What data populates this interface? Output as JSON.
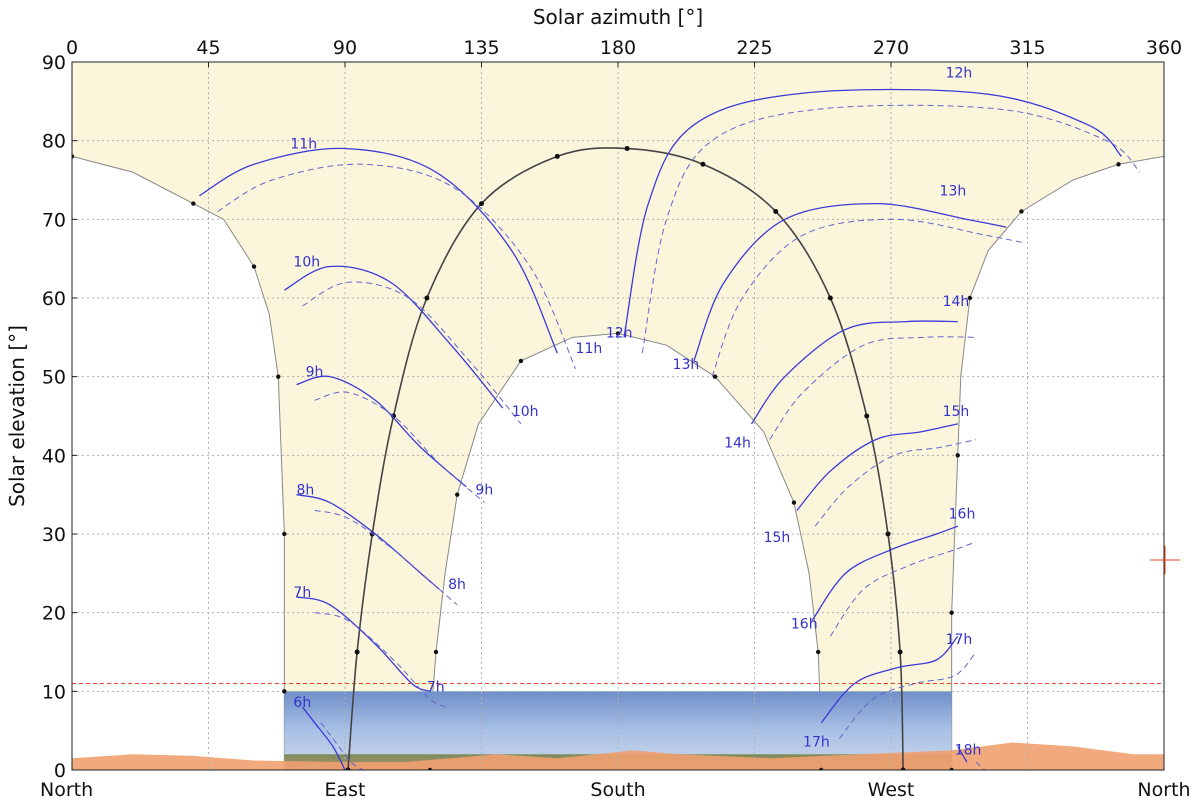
{
  "chart_data": {
    "type": "line",
    "xlabel_top": "Solar azimuth [°]",
    "ylabel": "Solar elevation [°]",
    "xlim": [
      0,
      360
    ],
    "ylim": [
      0,
      90
    ],
    "x_ticks": [
      0,
      45,
      90,
      135,
      180,
      225,
      270,
      315,
      360
    ],
    "y_ticks": [
      0,
      10,
      20,
      30,
      40,
      50,
      60,
      70,
      80,
      90
    ],
    "bottom_labels": [
      {
        "x": 0,
        "text": "North"
      },
      {
        "x": 90,
        "text": "East"
      },
      {
        "x": 180,
        "text": "South"
      },
      {
        "x": 270,
        "text": "West"
      },
      {
        "x": 360,
        "text": "North"
      }
    ],
    "colors": {
      "sky_region": "#fbf5dc",
      "analemma": "#3a3ad8",
      "boundary": "#888888",
      "horizon": "#f0a070",
      "limit_line": "#ee4422"
    },
    "horizon_limit_elevation": 11,
    "envelope": {
      "outer_left": [
        [
          0,
          78
        ],
        [
          20,
          76
        ],
        [
          40,
          72
        ],
        [
          50,
          70
        ],
        [
          60,
          64
        ],
        [
          65,
          58
        ],
        [
          68,
          50
        ],
        [
          69,
          40
        ],
        [
          70,
          30
        ],
        [
          70,
          20
        ],
        [
          70,
          10
        ],
        [
          70,
          0
        ]
      ],
      "outer_right": [
        [
          290,
          0
        ],
        [
          290,
          10
        ],
        [
          290,
          20
        ],
        [
          291,
          30
        ],
        [
          292,
          40
        ],
        [
          293,
          50
        ],
        [
          296,
          60
        ],
        [
          302,
          66
        ],
        [
          313,
          71
        ],
        [
          330,
          75
        ],
        [
          345,
          77
        ],
        [
          360,
          78
        ]
      ],
      "inner": [
        [
          118,
          0
        ],
        [
          118,
          5
        ],
        [
          120,
          15
        ],
        [
          123,
          25
        ],
        [
          127,
          35
        ],
        [
          134,
          44
        ],
        [
          148,
          52
        ],
        [
          165,
          55
        ],
        [
          180,
          55.5
        ],
        [
          196,
          54
        ],
        [
          212,
          50
        ],
        [
          228,
          43
        ],
        [
          238,
          34
        ],
        [
          243,
          25
        ],
        [
          246,
          15
        ],
        [
          247,
          5
        ],
        [
          247,
          0
        ]
      ]
    },
    "meridian_curves": [
      {
        "name": "",
        "points": [
          [
            91,
            0
          ],
          [
            94,
            15
          ],
          [
            99,
            30
          ],
          [
            106,
            45
          ],
          [
            117,
            60
          ],
          [
            135,
            72
          ],
          [
            160,
            78
          ],
          [
            183,
            79
          ],
          [
            208,
            77
          ],
          [
            232,
            71
          ],
          [
            250,
            60
          ],
          [
            262,
            45
          ],
          [
            269,
            30
          ],
          [
            273,
            15
          ],
          [
            274,
            0
          ]
        ]
      }
    ],
    "hour_markers": [
      {
        "label": "6h",
        "points": [
          [
            76,
            8
          ],
          [
            80,
            6
          ],
          [
            86,
            3
          ],
          [
            90,
            0
          ]
        ]
      },
      {
        "label": "7h",
        "points": [
          [
            74,
            22
          ],
          [
            85,
            21
          ],
          [
            100,
            16
          ],
          [
            112,
            11
          ],
          [
            118,
            10
          ]
        ]
      },
      {
        "label": "8h",
        "points": [
          [
            74,
            35
          ],
          [
            85,
            34
          ],
          [
            100,
            30
          ],
          [
            115,
            25
          ],
          [
            121,
            23
          ]
        ]
      },
      {
        "label": "9h",
        "points": [
          [
            74,
            49
          ],
          [
            85,
            50
          ],
          [
            100,
            47
          ],
          [
            115,
            41
          ],
          [
            130,
            36
          ]
        ]
      },
      {
        "label": "10h",
        "points": [
          [
            70,
            61
          ],
          [
            85,
            64
          ],
          [
            105,
            62
          ],
          [
            125,
            54
          ],
          [
            142,
            46
          ]
        ]
      },
      {
        "label": "11h",
        "points": [
          [
            42,
            73
          ],
          [
            60,
            77
          ],
          [
            90,
            79
          ],
          [
            120,
            76
          ],
          [
            145,
            66
          ],
          [
            160,
            53
          ]
        ]
      },
      {
        "label": "12h",
        "points": [
          [
            182,
            55
          ],
          [
            190,
            72
          ],
          [
            205,
            82
          ],
          [
            240,
            86
          ],
          [
            300,
            86
          ],
          [
            335,
            82
          ],
          [
            346,
            78
          ]
        ]
      },
      {
        "label": "13h",
        "points": [
          [
            205,
            52
          ],
          [
            215,
            62
          ],
          [
            235,
            70
          ],
          [
            265,
            72
          ],
          [
            295,
            70
          ],
          [
            308,
            69
          ]
        ]
      },
      {
        "label": "14h",
        "points": [
          [
            224,
            44
          ],
          [
            235,
            50
          ],
          [
            255,
            56
          ],
          [
            275,
            57
          ],
          [
            292,
            57
          ]
        ]
      },
      {
        "label": "15h",
        "points": [
          [
            239,
            33
          ],
          [
            250,
            38
          ],
          [
            265,
            42
          ],
          [
            280,
            43
          ],
          [
            292,
            44
          ]
        ]
      },
      {
        "label": "16h",
        "points": [
          [
            244,
            19
          ],
          [
            255,
            25
          ],
          [
            270,
            28
          ],
          [
            285,
            30
          ],
          [
            292,
            31
          ]
        ]
      },
      {
        "label": "17h",
        "points": [
          [
            247,
            6
          ],
          [
            258,
            11
          ],
          [
            272,
            13
          ],
          [
            285,
            14
          ],
          [
            292,
            17
          ]
        ]
      },
      {
        "label": "18h",
        "points": [
          [
            292,
            3
          ],
          [
            295,
            1
          ]
        ]
      }
    ],
    "label_positions": [
      {
        "text": "6h",
        "x": 73,
        "y": 8
      },
      {
        "text": "7h",
        "x": 73,
        "y": 22
      },
      {
        "text": "7h",
        "x": 117,
        "y": 10
      },
      {
        "text": "8h",
        "x": 74,
        "y": 35
      },
      {
        "text": "8h",
        "x": 124,
        "y": 23
      },
      {
        "text": "9h",
        "x": 77,
        "y": 50
      },
      {
        "text": "9h",
        "x": 133,
        "y": 35
      },
      {
        "text": "10h",
        "x": 73,
        "y": 64
      },
      {
        "text": "10h",
        "x": 145,
        "y": 45
      },
      {
        "text": "11h",
        "x": 72,
        "y": 79
      },
      {
        "text": "11h",
        "x": 166,
        "y": 53
      },
      {
        "text": "12h",
        "x": 176,
        "y": 55
      },
      {
        "text": "12h",
        "x": 288,
        "y": 88
      },
      {
        "text": "13h",
        "x": 198,
        "y": 51
      },
      {
        "text": "13h",
        "x": 286,
        "y": 73
      },
      {
        "text": "14h",
        "x": 215,
        "y": 41
      },
      {
        "text": "14h",
        "x": 287,
        "y": 59
      },
      {
        "text": "15h",
        "x": 228,
        "y": 29
      },
      {
        "text": "15h",
        "x": 287,
        "y": 45
      },
      {
        "text": "16h",
        "x": 237,
        "y": 18
      },
      {
        "text": "16h",
        "x": 289,
        "y": 32
      },
      {
        "text": "17h",
        "x": 241,
        "y": 3
      },
      {
        "text": "17h",
        "x": 288,
        "y": 16
      },
      {
        "text": "18h",
        "x": 291,
        "y": 2
      }
    ]
  }
}
